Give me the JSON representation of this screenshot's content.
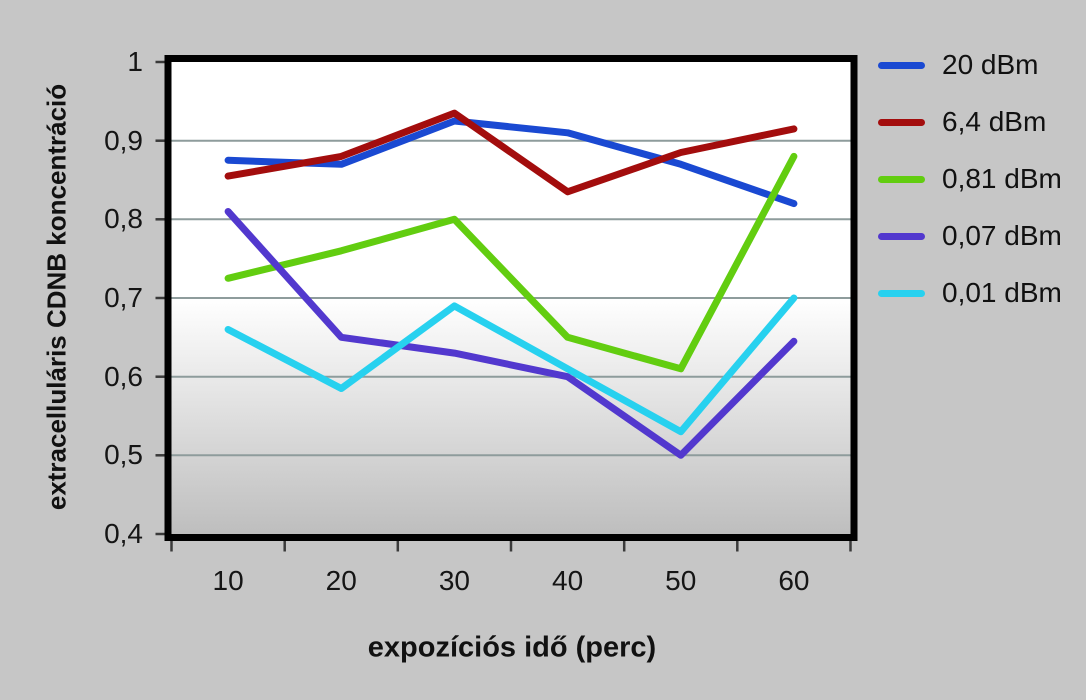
{
  "figure": {
    "background": "#c6c6c6",
    "plot_bg_top": "#ffffff",
    "plot_bg_bottom": "#bdbdbd",
    "grid_color": "#8e9c9c",
    "frame_color": "#000000",
    "tick_color": "#3a3a3a",
    "text_color": "#111111"
  },
  "chart_data": {
    "type": "line",
    "xlabel": "expozíciós idő (perc)",
    "ylabel": "extracelluláris CDNB koncentráció",
    "x": [
      10,
      20,
      30,
      40,
      50,
      60
    ],
    "xtick_labels": [
      "10",
      "20",
      "30",
      "40",
      "50",
      "60"
    ],
    "ylim": [
      0.4,
      1.0
    ],
    "ytick_values": [
      1.0,
      0.9,
      0.8,
      0.7,
      0.6,
      0.5,
      0.4
    ],
    "ytick_labels": [
      "1",
      "0,9",
      "0,8",
      "0,7",
      "0,6",
      "0,5",
      "0,4"
    ],
    "grid": true,
    "legend_position": "right",
    "series": [
      {
        "name": "20 dBm",
        "color": "#1a49d2",
        "values": [
          0.875,
          0.87,
          0.925,
          0.91,
          0.87,
          0.82
        ]
      },
      {
        "name": "6,4 dBm",
        "color": "#a30d0d",
        "values": [
          0.855,
          0.88,
          0.935,
          0.835,
          0.885,
          0.915
        ]
      },
      {
        "name": "0,81 dBm",
        "color": "#62cd10",
        "values": [
          0.725,
          0.76,
          0.8,
          0.65,
          0.61,
          0.88
        ]
      },
      {
        "name": "0,07 dBm",
        "color": "#5238ce",
        "values": [
          0.81,
          0.65,
          0.63,
          0.6,
          0.5,
          0.645
        ]
      },
      {
        "name": "0,01 dBm",
        "color": "#27d1ef",
        "values": [
          0.66,
          0.585,
          0.69,
          0.61,
          0.53,
          0.7
        ]
      }
    ]
  }
}
